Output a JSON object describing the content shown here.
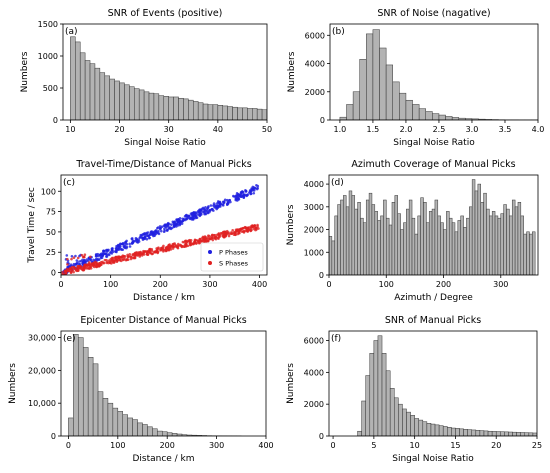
{
  "chart_data": [
    {
      "id": "a",
      "type": "bar",
      "panel_label": "(a)",
      "title": "SNR of Events (positive)",
      "xlabel": "Singal Noise Ratio",
      "ylabel": "Numbers",
      "xlim": [
        8.5,
        50
      ],
      "ylim": [
        0,
        1500
      ],
      "xticks": [
        10,
        20,
        30,
        40,
        50
      ],
      "xtick_labels": [
        "10",
        "20",
        "30",
        "40",
        "50"
      ],
      "yticks": [
        0,
        500,
        1000,
        1500
      ],
      "ytick_labels": [
        "0",
        "500",
        "1000",
        "1500"
      ],
      "bin_start": 10,
      "bin_width": 1,
      "values": [
        1300,
        1220,
        1050,
        930,
        880,
        810,
        740,
        690,
        640,
        610,
        580,
        550,
        520,
        490,
        470,
        440,
        420,
        410,
        380,
        370,
        360,
        360,
        340,
        330,
        310,
        290,
        270,
        250,
        240,
        240,
        230,
        220,
        210,
        200,
        190,
        190,
        180,
        180,
        170,
        160
      ]
    },
    {
      "id": "b",
      "type": "bar",
      "panel_label": "(b)",
      "title": "SNR of Noise (nagative)",
      "xlabel": "Singal Noise Ratio",
      "ylabel": "Numbers",
      "xlim": [
        0.85,
        4.0
      ],
      "ylim": [
        0,
        6800
      ],
      "xticks": [
        1.0,
        1.5,
        2.0,
        2.5,
        3.0,
        3.5,
        4.0
      ],
      "xtick_labels": [
        "1.0",
        "1.5",
        "2.0",
        "2.5",
        "3.0",
        "3.5",
        "4.0"
      ],
      "yticks": [
        0,
        2000,
        4000,
        6000
      ],
      "ytick_labels": [
        "0",
        "2000",
        "4000",
        "6000"
      ],
      "bin_start": 1.0,
      "bin_width": 0.1,
      "values": [
        200,
        1100,
        2000,
        4300,
        6100,
        6400,
        5100,
        3900,
        2700,
        1900,
        1400,
        1100,
        800,
        600,
        450,
        350,
        250,
        180,
        130,
        100,
        80,
        60,
        40,
        30,
        20,
        10,
        10,
        5,
        5,
        5
      ]
    },
    {
      "id": "c",
      "type": "scatter",
      "panel_label": "(c)",
      "title": "Travel-Time/Distance of Manual Picks",
      "xlabel": "Distance / km",
      "ylabel": "Travel Time / sec",
      "xlim": [
        0,
        415
      ],
      "ylim": [
        -3,
        120
      ],
      "xticks": [
        0,
        100,
        200,
        300,
        400
      ],
      "xtick_labels": [
        "0",
        "100",
        "200",
        "300",
        "400"
      ],
      "yticks": [
        0,
        25,
        50,
        75,
        100
      ],
      "ytick_labels": [
        "0",
        "25",
        "50",
        "75",
        "100"
      ],
      "legend_position": "lower-right",
      "series": [
        {
          "name": "P Phases",
          "color": "#1f1fe0",
          "slope": 0.262,
          "spread": 4.5
        },
        {
          "name": "S Phases",
          "color": "#e02020",
          "slope": 0.142,
          "spread": 3.5
        }
      ]
    },
    {
      "id": "d",
      "type": "bar",
      "panel_label": "(d)",
      "title": "Azimuth Coverage of Manual Picks",
      "xlabel": "Azimuth / Degree",
      "ylabel": "Numbers",
      "xlim": [
        0,
        365
      ],
      "ylim": [
        0,
        4400
      ],
      "xticks": [
        0,
        100,
        200,
        300
      ],
      "xtick_labels": [
        "0",
        "100",
        "200",
        "300"
      ],
      "yticks": [
        0,
        1000,
        2000,
        3000,
        4000
      ],
      "ytick_labels": [
        "0",
        "1000",
        "2000",
        "3000",
        "4000"
      ],
      "bin_start": 0,
      "bin_width": 5,
      "values": [
        1700,
        1500,
        2600,
        3100,
        3300,
        3500,
        3000,
        3700,
        3500,
        2900,
        3200,
        2500,
        2300,
        3300,
        3600,
        3100,
        2800,
        2400,
        2600,
        3300,
        2500,
        2200,
        3200,
        3500,
        2700,
        2000,
        2300,
        2900,
        3300,
        2500,
        1800,
        2600,
        3400,
        3200,
        2300,
        2800,
        2900,
        3300,
        2600,
        2300,
        2000,
        2800,
        2500,
        2300,
        1900,
        2400,
        2600,
        2100,
        2500,
        3000,
        4200,
        3700,
        4000,
        3200,
        3600,
        2900,
        2600,
        2800,
        2600,
        2500,
        2700,
        3100,
        2900,
        2600,
        3300,
        3000,
        3200,
        2600,
        1800,
        1900,
        1800,
        1900
      ]
    },
    {
      "id": "e",
      "type": "bar",
      "panel_label": "(e)",
      "title": "Epicenter Distance of Manual Picks",
      "xlabel": "Distance / km",
      "ylabel": "Numbers",
      "xlim": [
        -15,
        400
      ],
      "ylim": [
        0,
        32000
      ],
      "xticks": [
        0,
        100,
        200,
        300,
        400
      ],
      "xtick_labels": [
        "0",
        "100",
        "200",
        "300",
        "400"
      ],
      "yticks": [
        0,
        10000,
        20000,
        30000
      ],
      "ytick_labels": [
        "0",
        "10,000",
        "20,000",
        "30,000"
      ],
      "bin_start": 0,
      "bin_width": 10,
      "values": [
        5500,
        31000,
        30000,
        27000,
        24000,
        22000,
        13500,
        11500,
        10000,
        8500,
        7500,
        6500,
        5500,
        5000,
        4000,
        3500,
        2800,
        2200,
        1500,
        1300,
        1000,
        800,
        600,
        400,
        300,
        250,
        200,
        150,
        100,
        80,
        60,
        40,
        30,
        20,
        10
      ]
    },
    {
      "id": "f",
      "type": "bar",
      "panel_label": "(f)",
      "title": "SNR of Manual Picks",
      "xlabel": "Singal Noise Ratio",
      "ylabel": "Numbers",
      "xlim": [
        -0.5,
        25
      ],
      "ylim": [
        0,
        6600
      ],
      "xticks": [
        0,
        5,
        10,
        15,
        20,
        25
      ],
      "xtick_labels": [
        "0",
        "5",
        "10",
        "15",
        "20",
        "25"
      ],
      "yticks": [
        0,
        2000,
        4000,
        6000
      ],
      "ytick_labels": [
        "0",
        "2000",
        "4000",
        "6000"
      ],
      "bin_start": 3,
      "bin_width": 0.5,
      "values": [
        300,
        2200,
        3800,
        5200,
        6000,
        6300,
        5200,
        4100,
        3000,
        2400,
        2000,
        1700,
        1500,
        1300,
        1100,
        1000,
        900,
        800,
        750,
        700,
        650,
        600,
        550,
        500,
        480,
        450,
        420,
        400,
        380,
        360,
        340,
        320,
        300,
        290,
        280,
        270,
        260,
        250,
        240,
        230,
        220,
        210,
        200,
        190
      ]
    }
  ]
}
